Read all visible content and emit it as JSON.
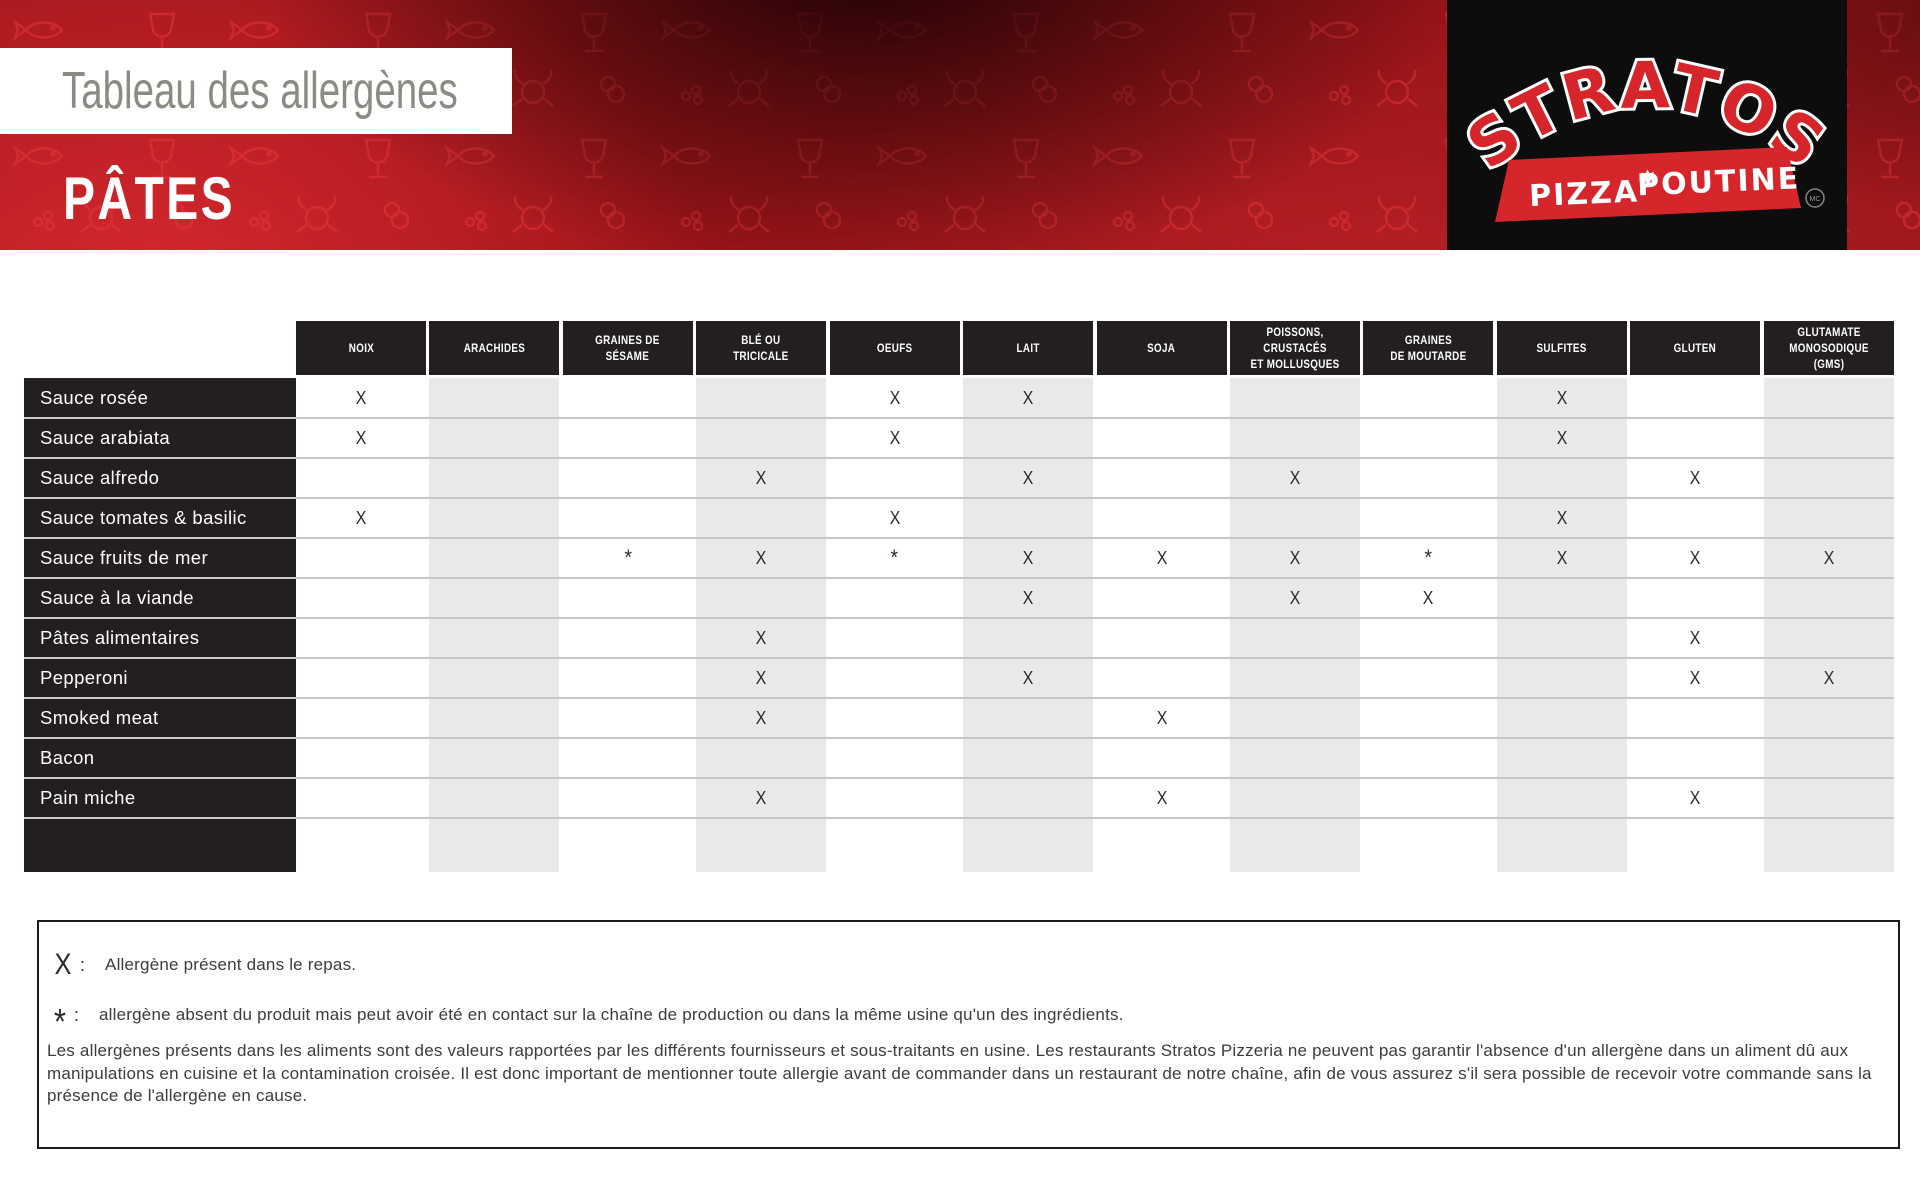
{
  "banner": {
    "title": "Tableau des allergènes",
    "category": "PÂTES",
    "logo": {
      "brand": "STRATOS",
      "tagline_left": "PIZZA",
      "tagline_right": "POUTINE",
      "trademark": "MC"
    }
  },
  "table": {
    "columns": [
      "NOIX",
      "ARACHIDES",
      "GRAINES DE\nSÉSAME",
      "BLÉ OU\nTRICICALE",
      "OEUFS",
      "LAIT",
      "SOJA",
      "POISSONS, CRUSTACÉS\nET MOLLUSQUES",
      "GRAINES\nDE MOUTARDE",
      "SULFITES",
      "GLUTEN",
      "GLUTAMATE MONOSODIQUE\n(GMS)"
    ],
    "mark_present": "X",
    "mark_trace": "*",
    "rows": [
      {
        "label": "Sauce rosée",
        "cells": [
          "X",
          "",
          "",
          "",
          "X",
          "X",
          "",
          "",
          "",
          "X",
          "",
          ""
        ]
      },
      {
        "label": "Sauce arabiata",
        "cells": [
          "X",
          "",
          "",
          "",
          "X",
          "",
          "",
          "",
          "",
          "X",
          "",
          ""
        ]
      },
      {
        "label": "Sauce alfredo",
        "cells": [
          "",
          "",
          "",
          "X",
          "",
          "X",
          "",
          "X",
          "",
          "",
          "X",
          ""
        ]
      },
      {
        "label": "Sauce tomates & basilic",
        "cells": [
          "X",
          "",
          "",
          "",
          "X",
          "",
          "",
          "",
          "",
          "X",
          "",
          ""
        ]
      },
      {
        "label": "Sauce fruits de mer",
        "cells": [
          "",
          "",
          "*",
          "X",
          "*",
          "X",
          "X",
          "X",
          "*",
          "X",
          "X",
          "X"
        ]
      },
      {
        "label": "Sauce à la viande",
        "cells": [
          "",
          "",
          "",
          "",
          "",
          "X",
          "",
          "X",
          "X",
          "",
          "",
          ""
        ]
      },
      {
        "label": "Pâtes alimentaires",
        "cells": [
          "",
          "",
          "",
          "X",
          "",
          "",
          "",
          "",
          "",
          "",
          "X",
          ""
        ]
      },
      {
        "label": "Pepperoni",
        "cells": [
          "",
          "",
          "",
          "X",
          "",
          "X",
          "",
          "",
          "",
          "",
          "X",
          "X"
        ]
      },
      {
        "label": "Smoked meat",
        "cells": [
          "",
          "",
          "",
          "X",
          "",
          "",
          "X",
          "",
          "",
          "",
          "",
          ""
        ]
      },
      {
        "label": "Bacon",
        "cells": [
          "",
          "",
          "",
          "",
          "",
          "",
          "",
          "",
          "",
          "",
          "",
          ""
        ]
      },
      {
        "label": "Pain miche",
        "cells": [
          "",
          "",
          "",
          "X",
          "",
          "",
          "X",
          "",
          "",
          "",
          "X",
          ""
        ]
      }
    ]
  },
  "legend": {
    "x_symbol": "X",
    "colon": ":",
    "x_text": "Allergène présent dans le repas.",
    "star_symbol": "*",
    "star_text": "allergène absent du produit mais peut avoir été en contact sur la chaîne de production ou dans la même usine qu'un des ingrédients.",
    "paragraph": "Les allergènes présents dans les aliments sont des valeurs rapportées par les différents fournisseurs et sous-traitants en usine.  Les restaurants Stratos Pizzeria ne peuvent pas garantir l'absence d'un allergène dans un aliment dû aux manipulations en cuisine et la contamination croisée.  Il est donc important de mentionner toute allergie avant de commander dans un restaurant de notre chaîne, afin de vous assurez s'il sera possible de recevoir votre commande sans la présence de l'allergène en cause."
  },
  "colors": {
    "banner_red": "#a1171b",
    "banner_red_bright": "#d5282e",
    "banner_dark": "#140104",
    "logo_red": "#d6252b",
    "header_black": "#231f20",
    "stripe_gray": "#e9e9e9",
    "separator_gray": "#c8c8c8",
    "title_gray": "#8b8a83"
  }
}
